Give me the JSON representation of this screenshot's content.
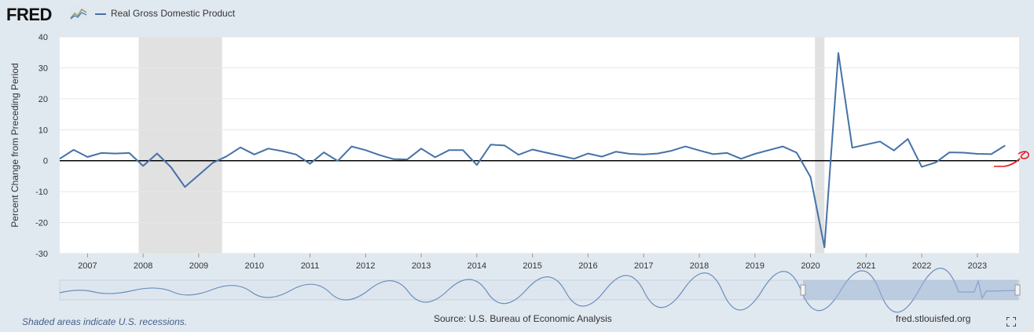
{
  "header": {
    "logo_text": "FRED",
    "logo_icon": "chart-line-icon",
    "legend_label": "Real Gross Domestic Product"
  },
  "footer": {
    "recession_note": "Shaded areas indicate U.S. recessions.",
    "source": "Source: U.S. Bureau of Economic Analysis",
    "site": "fred.stlouisfed.org",
    "fullscreen_icon": "fullscreen-icon"
  },
  "colors": {
    "series": "#4572a7",
    "zero_line": "#000000",
    "recession": "#e1e1e1",
    "grid": "#e6e6e6",
    "annotation": "#e41a1c"
  },
  "chart_data": {
    "type": "line",
    "ylabel": "Percent Change from Preceding Period",
    "ylim": [
      -30,
      40
    ],
    "yticks": [
      -30,
      -20,
      -10,
      0,
      10,
      20,
      30,
      40
    ],
    "xlim": [
      2006.5,
      2023.75
    ],
    "xticks": [
      2007,
      2008,
      2009,
      2010,
      2011,
      2012,
      2013,
      2014,
      2015,
      2016,
      2017,
      2018,
      2019,
      2020,
      2021,
      2022,
      2023
    ],
    "recessions": [
      [
        2007.92,
        2009.42
      ],
      [
        2020.08,
        2020.25
      ]
    ],
    "series": [
      {
        "name": "Real Gross Domestic Product",
        "x": [
          2006.5,
          2006.75,
          2007.0,
          2007.25,
          2007.5,
          2007.75,
          2008.0,
          2008.25,
          2008.5,
          2008.75,
          2009.0,
          2009.25,
          2009.5,
          2009.75,
          2010.0,
          2010.25,
          2010.5,
          2010.75,
          2011.0,
          2011.25,
          2011.5,
          2011.75,
          2012.0,
          2012.25,
          2012.5,
          2012.75,
          2013.0,
          2013.25,
          2013.5,
          2013.75,
          2014.0,
          2014.25,
          2014.5,
          2014.75,
          2015.0,
          2015.25,
          2015.5,
          2015.75,
          2016.0,
          2016.25,
          2016.5,
          2016.75,
          2017.0,
          2017.25,
          2017.5,
          2017.75,
          2018.0,
          2018.25,
          2018.5,
          2018.75,
          2019.0,
          2019.25,
          2019.5,
          2019.75,
          2020.0,
          2020.25,
          2020.5,
          2020.75,
          2021.0,
          2021.25,
          2021.5,
          2021.75,
          2022.0,
          2022.25,
          2022.5,
          2022.75,
          2023.0,
          2023.25,
          2023.5
        ],
        "values": [
          0.6,
          3.5,
          1.2,
          2.5,
          2.3,
          2.5,
          -1.7,
          2.3,
          -2.1,
          -8.5,
          -4.6,
          -0.7,
          1.4,
          4.3,
          2.0,
          3.9,
          3.1,
          2.0,
          -1.0,
          2.7,
          -0.1,
          4.6,
          3.4,
          1.8,
          0.5,
          0.4,
          3.9,
          1.1,
          3.4,
          3.4,
          -1.4,
          5.2,
          4.9,
          1.9,
          3.6,
          2.6,
          1.6,
          0.6,
          2.3,
          1.3,
          2.9,
          2.2,
          2.0,
          2.3,
          3.2,
          4.6,
          3.3,
          2.1,
          2.5,
          0.6,
          2.2,
          3.4,
          4.6,
          2.6,
          -5.3,
          -28.0,
          34.8,
          4.2,
          5.2,
          6.2,
          3.3,
          7.0,
          -2.0,
          -0.6,
          2.7,
          2.6,
          2.2,
          2.1,
          4.9
        ]
      }
    ]
  }
}
